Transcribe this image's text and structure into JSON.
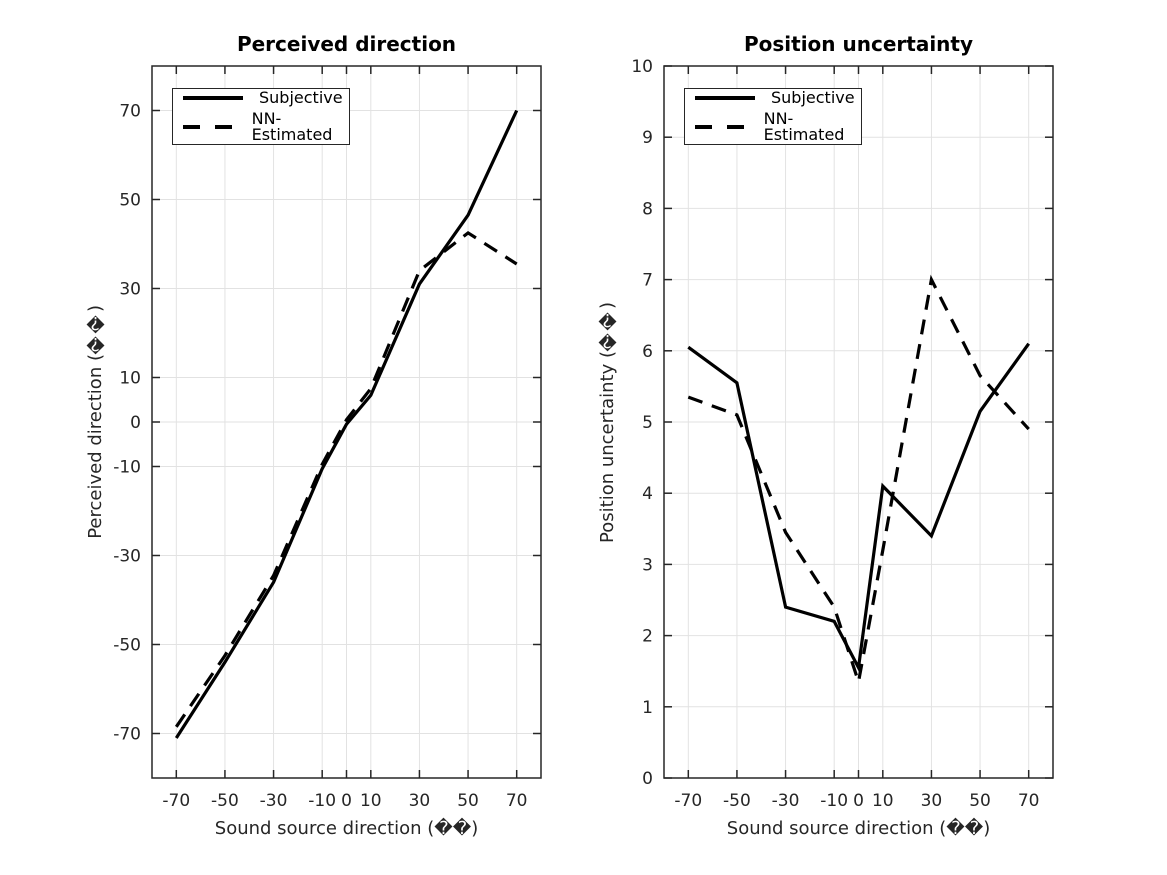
{
  "figure": {
    "background": "#ffffff"
  },
  "colors": {
    "line": "#000000",
    "grid": "#e2e2e2",
    "frame": "#262626",
    "tick_label": "#262626",
    "title": "#000000",
    "legend_background": "#ffffff"
  },
  "legend": {
    "position": "top-left",
    "entries": [
      "Subjective",
      "NN-Estimated"
    ]
  },
  "chart_data": [
    {
      "type": "line",
      "title": "Perceived direction",
      "xlabel": "Sound source direction (��)",
      "ylabel": "Perceived direction (��)",
      "xlim": [
        -80,
        80
      ],
      "ylim": [
        -80,
        80
      ],
      "xticks": [
        -70,
        -50,
        -30,
        -10,
        0,
        10,
        30,
        50,
        70
      ],
      "yticks": [
        -70,
        -50,
        -30,
        -10,
        0,
        10,
        30,
        50,
        70
      ],
      "grid": true,
      "x": [
        -70,
        -50,
        -30,
        -10,
        0,
        10,
        30,
        50,
        70
      ],
      "series": [
        {
          "name": "Subjective",
          "style": "solid",
          "values": [
            -71,
            -54,
            -36,
            -10.5,
            -0.5,
            6,
            31,
            46.5,
            70
          ]
        },
        {
          "name": "NN-Estimated",
          "style": "dashed",
          "values": [
            -68.5,
            -52.5,
            -34.5,
            -9.5,
            0.5,
            7.5,
            34,
            42.5,
            35.5
          ]
        }
      ]
    },
    {
      "type": "line",
      "title": "Position uncertainty",
      "xlabel": "Sound source direction (��)",
      "ylabel": "Position uncertainty (��)",
      "xlim": [
        -80,
        80
      ],
      "ylim": [
        0,
        10
      ],
      "xticks": [
        -70,
        -50,
        -30,
        -10,
        0,
        10,
        30,
        50,
        70
      ],
      "yticks": [
        0,
        1,
        2,
        3,
        4,
        5,
        6,
        7,
        8,
        9,
        10
      ],
      "grid": true,
      "x": [
        -70,
        -50,
        -30,
        -10,
        0,
        10,
        30,
        50,
        70
      ],
      "series": [
        {
          "name": "Subjective",
          "style": "solid",
          "values": [
            6.05,
            5.55,
            2.4,
            2.2,
            1.55,
            4.1,
            3.4,
            5.15,
            6.1
          ]
        },
        {
          "name": "NN-Estimated",
          "style": "dashed",
          "values": [
            5.35,
            5.1,
            3.45,
            2.4,
            1.35,
            3.2,
            7.0,
            5.65,
            4.9
          ]
        }
      ]
    }
  ]
}
